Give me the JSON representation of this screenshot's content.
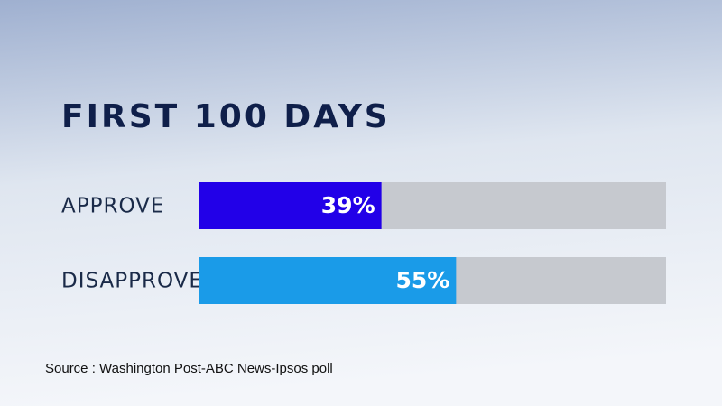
{
  "chart_data": {
    "type": "bar",
    "orientation": "horizontal",
    "title": "FIRST 100 DAYS",
    "categories": [
      "APPROVE",
      "DISAPPROVE"
    ],
    "values": [
      39,
      55
    ],
    "value_labels": [
      "39%",
      "55%"
    ],
    "colors": [
      "#2200e8",
      "#1a9be8"
    ],
    "xlim": [
      0,
      100
    ],
    "source": "Source : Washington Post-ABC News-Ipsos poll"
  }
}
